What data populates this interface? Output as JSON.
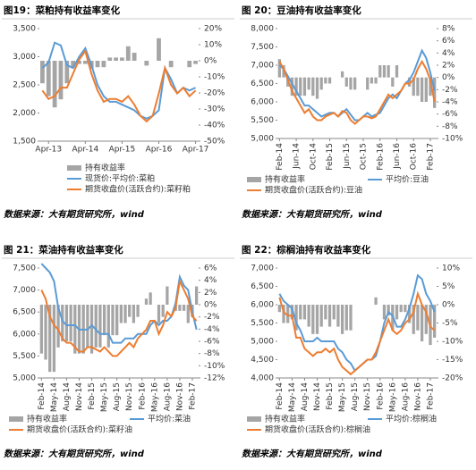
{
  "chart_data": [
    {
      "type": "combo",
      "title": "图19：菜粕持有收益率变化",
      "source": "数据来源：大有期货研究所，wind",
      "categories": [
        null,
        "Apr-13",
        null,
        null,
        null,
        null,
        null,
        "Apr-14",
        null,
        null,
        null,
        null,
        null,
        "Apr-15",
        null,
        null,
        null,
        null,
        null,
        "Apr-16",
        null,
        null,
        null,
        null,
        null,
        "Apr-17"
      ],
      "ylim": [
        1500,
        3500
      ],
      "yticks": [
        {
          "value": 1500,
          "label": "1,500"
        },
        {
          "value": 2000,
          "label": "2,000"
        },
        {
          "value": 2500,
          "label": "2,500"
        },
        {
          "value": 3000,
          "label": "3,000"
        },
        {
          "value": 3500,
          "label": "3,500"
        }
      ],
      "y2lim": [
        -50,
        20
      ],
      "y2ticks": [
        {
          "value": -50,
          "label": "-50%"
        },
        {
          "value": -40,
          "label": "-40%"
        },
        {
          "value": -30,
          "label": "-30%"
        },
        {
          "value": -20,
          "label": "-20%"
        },
        {
          "value": -10,
          "label": "-10%"
        },
        {
          "value": 0,
          "label": "0%"
        },
        {
          "value": 10,
          "label": "10%"
        },
        {
          "value": 20,
          "label": "20%"
        }
      ],
      "series": [
        {
          "name": "持有收益率",
          "type": "bar",
          "axis": "y2",
          "color": "#a5a5a5",
          "values": [
            -14,
            -22,
            -29,
            -24,
            -14,
            -4,
            -2,
            -2,
            -5,
            -4,
            -4,
            2,
            2,
            2,
            9,
            5,
            0,
            -3,
            0,
            14,
            0,
            -4,
            0,
            0,
            -4,
            -2
          ]
        },
        {
          "name": "现货价:平均价:菜粕",
          "type": "line",
          "color": "#5b9bd5",
          "values": [
            2800,
            2900,
            3250,
            3200,
            2850,
            2800,
            3000,
            3150,
            2850,
            2500,
            2300,
            2200,
            2200,
            2150,
            2100,
            2050,
            1950,
            1900,
            1950,
            2050,
            2800,
            2600,
            2350,
            2450,
            2400,
            2450
          ]
        },
        {
          "name": "期货收盘价(活跃合约):菜籽粕",
          "type": "line",
          "color": "#ed7d31",
          "values": [
            2400,
            2250,
            2300,
            2450,
            2450,
            2700,
            2950,
            3100,
            2700,
            2400,
            2200,
            2250,
            2250,
            2200,
            2300,
            2150,
            1950,
            1850,
            1950,
            2350,
            2800,
            2500,
            2350,
            2450,
            2300,
            2400
          ]
        }
      ]
    },
    {
      "type": "combo",
      "title": "图 20：豆油持有收益率变化",
      "source": "数据来源：大有期货研究所，wind",
      "categories": [
        "Feb-14",
        null,
        null,
        null,
        "Jun-14",
        null,
        null,
        null,
        "Oct-14",
        null,
        null,
        null,
        "Feb-15",
        null,
        null,
        null,
        "Jun-15",
        null,
        null,
        null,
        "Oct-15",
        null,
        null,
        null,
        "Feb-16",
        null,
        null,
        null,
        "Jun-16",
        null,
        null,
        null,
        "Oct-16",
        null,
        null,
        null,
        "Feb-17",
        null
      ],
      "ylim": [
        5000,
        8000
      ],
      "yticks": [
        {
          "value": 5000,
          "label": "5,000"
        },
        {
          "value": 5500,
          "label": "5,500"
        },
        {
          "value": 6000,
          "label": "6,000"
        },
        {
          "value": 6500,
          "label": "6,500"
        },
        {
          "value": 7000,
          "label": "7,000"
        },
        {
          "value": 7500,
          "label": "7,500"
        },
        {
          "value": 8000,
          "label": "8,000"
        }
      ],
      "y2lim": [
        -10,
        8
      ],
      "y2ticks": [
        {
          "value": -10,
          "label": "-10%"
        },
        {
          "value": -8,
          "label": "-8%"
        },
        {
          "value": -6,
          "label": "-6%"
        },
        {
          "value": -4,
          "label": "-4%"
        },
        {
          "value": -2,
          "label": "-2%"
        },
        {
          "value": 0,
          "label": "0%"
        },
        {
          "value": 2,
          "label": "2%"
        },
        {
          "value": 4,
          "label": "4%"
        },
        {
          "value": 6,
          "label": "6%"
        },
        {
          "value": 8,
          "label": "8%"
        }
      ],
      "series": [
        {
          "name": "持有收益率",
          "type": "bar",
          "axis": "y2",
          "color": "#a5a5a5",
          "values": [
            3,
            2,
            -1.5,
            -3,
            -3,
            -3,
            -3,
            -2,
            -3,
            -3.5,
            -2,
            -1,
            -1,
            0,
            0,
            1,
            -1.5,
            -2,
            -2,
            0,
            0,
            -2,
            -1,
            -1,
            2,
            2,
            2,
            -1.5,
            2,
            0,
            0,
            -1.5,
            -3,
            -3,
            -4,
            -4,
            -3,
            -5
          ]
        },
        {
          "name": "平均价:豆油",
          "type": "line",
          "color": "#5b9bd5",
          "values": [
            7000,
            6900,
            6700,
            6500,
            6300,
            6100,
            5900,
            5900,
            5800,
            5700,
            5600,
            5650,
            5700,
            5700,
            5600,
            5700,
            5800,
            5650,
            5500,
            5500,
            5600,
            5700,
            5600,
            5650,
            5700,
            5900,
            6100,
            6200,
            6100,
            6300,
            6500,
            6600,
            6800,
            7100,
            7400,
            7200,
            6800,
            6300
          ]
        },
        {
          "name": "期货收盘价(活跃合约):豆油",
          "type": "line",
          "color": "#ed7d31",
          "values": [
            7100,
            6900,
            6600,
            6300,
            6100,
            5900,
            5700,
            5800,
            5600,
            5500,
            5500,
            5600,
            5650,
            5700,
            5600,
            5750,
            5700,
            5500,
            5400,
            5500,
            5600,
            5600,
            5550,
            5600,
            5800,
            6000,
            6200,
            6100,
            6200,
            6300,
            6500,
            6500,
            6600,
            6900,
            7100,
            6900,
            6600,
            6000
          ]
        }
      ]
    },
    {
      "type": "combo",
      "title": "图 21：菜油持有收益率变化",
      "source": "数据来源：大有期货研究所，wind",
      "categories": [
        "Feb-14",
        null,
        null,
        "May-14",
        null,
        null,
        "Aug-14",
        null,
        null,
        "Nov-14",
        null,
        null,
        "Feb-15",
        null,
        null,
        "May-15",
        null,
        null,
        "Aug-15",
        null,
        null,
        "Nov-15",
        null,
        null,
        "Feb-16",
        null,
        null,
        "May-16",
        null,
        null,
        "Aug-16",
        null,
        null,
        "Nov-16",
        null,
        null,
        "Feb-17",
        null
      ],
      "ylim": [
        5000,
        7500
      ],
      "yticks": [
        {
          "value": 5000,
          "label": "5,000"
        },
        {
          "value": 5500,
          "label": "5,500"
        },
        {
          "value": 6000,
          "label": "6,000"
        },
        {
          "value": 6500,
          "label": "6,500"
        },
        {
          "value": 7000,
          "label": "7,000"
        },
        {
          "value": 7500,
          "label": "7,500"
        }
      ],
      "y2lim": [
        -12,
        6
      ],
      "y2ticks": [
        {
          "value": -12,
          "label": "-12%"
        },
        {
          "value": -10,
          "label": "-10%"
        },
        {
          "value": -8,
          "label": "-8%"
        },
        {
          "value": -6,
          "label": "-6%"
        },
        {
          "value": -4,
          "label": "-4%"
        },
        {
          "value": -2,
          "label": "-2%"
        },
        {
          "value": 0,
          "label": "0%"
        },
        {
          "value": 2,
          "label": "2%"
        },
        {
          "value": 4,
          "label": "4%"
        },
        {
          "value": 6,
          "label": "6%"
        }
      ],
      "series": [
        {
          "name": "持有收益率",
          "type": "bar",
          "axis": "y2",
          "color": "#a5a5a5",
          "values": [
            -8,
            -9,
            -11,
            -11,
            -7,
            -6,
            -6,
            -6,
            -8,
            -8,
            -8,
            -7,
            -8,
            -7,
            -7,
            -5,
            -7,
            -5,
            -5,
            -3,
            -3,
            -2,
            -3,
            -2,
            0,
            1,
            2,
            0,
            -3,
            -2,
            3,
            0,
            -1,
            -1,
            -1,
            -3,
            -2,
            3
          ]
        },
        {
          "name": "平均价:菜油",
          "type": "line",
          "color": "#5b9bd5",
          "values": [
            7600,
            7500,
            7400,
            7200,
            6600,
            6300,
            6200,
            6200,
            6200,
            6100,
            6100,
            6100,
            6200,
            6100,
            6000,
            6000,
            6000,
            5800,
            5800,
            5800,
            5900,
            5900,
            5900,
            6000,
            6000,
            6000,
            6200,
            6300,
            6200,
            6300,
            6300,
            6400,
            6700,
            7300,
            7100,
            7000,
            6500,
            6100
          ]
        },
        {
          "name": "期货收盘价(活跃合约):菜籽油",
          "type": "line",
          "color": "#ed7d31",
          "values": [
            7000,
            6800,
            6400,
            6200,
            6100,
            5900,
            5800,
            5800,
            5700,
            5600,
            5600,
            5700,
            5700,
            5650,
            5600,
            5700,
            5600,
            5500,
            5500,
            5600,
            5700,
            5800,
            5700,
            5900,
            6000,
            6100,
            6300,
            6300,
            6000,
            6200,
            6500,
            6400,
            6600,
            7200,
            7000,
            6800,
            6400,
            6300
          ]
        }
      ]
    },
    {
      "type": "combo",
      "title": "图 22：棕榈油持有收益率变化",
      "source": "数据来源：大有期货研究所，wind",
      "categories": [
        "Feb-14",
        null,
        null,
        "May-14",
        null,
        null,
        "Aug-14",
        null,
        null,
        "Nov-14",
        null,
        null,
        "Feb-15",
        null,
        null,
        "May-15",
        null,
        null,
        "Aug-15",
        null,
        null,
        "Nov-15",
        null,
        null,
        "Feb-16",
        null,
        null,
        "May-16",
        null,
        null,
        "Aug-16",
        null,
        null,
        "Nov-16",
        null,
        null,
        "Feb-17",
        null
      ],
      "ylim": [
        4000,
        7000
      ],
      "yticks": [
        {
          "value": 4000,
          "label": "4,000"
        },
        {
          "value": 4500,
          "label": "4,500"
        },
        {
          "value": 5000,
          "label": "5,000"
        },
        {
          "value": 5500,
          "label": "5,500"
        },
        {
          "value": 6000,
          "label": "6,000"
        },
        {
          "value": 6500,
          "label": "6,500"
        },
        {
          "value": 7000,
          "label": "7,000"
        }
      ],
      "y2lim": [
        -20,
        10
      ],
      "y2ticks": [
        {
          "value": -20,
          "label": "-20%"
        },
        {
          "value": -15,
          "label": "-15%"
        },
        {
          "value": -10,
          "label": "-10%"
        },
        {
          "value": -5,
          "label": "-5%"
        },
        {
          "value": 0,
          "label": "0%"
        },
        {
          "value": 5,
          "label": "5%"
        },
        {
          "value": 10,
          "label": "10%"
        }
      ],
      "series": [
        {
          "name": "持有收益率",
          "type": "bar",
          "axis": "y2",
          "color": "#a5a5a5",
          "values": [
            -2,
            -5,
            -5,
            -4,
            -7,
            -4,
            -4,
            -6,
            -8,
            -8,
            -6,
            -4,
            -6,
            -4,
            -6,
            -8,
            -7,
            -7,
            0,
            0,
            0,
            0,
            0,
            2,
            0,
            -4,
            -3,
            -7,
            -4,
            -2,
            -2,
            -5,
            -8,
            -7,
            -10,
            -8,
            -11,
            -9
          ]
        },
        {
          "name": "平均价:棕榈油",
          "type": "line",
          "color": "#5b9bd5",
          "values": [
            6300,
            6100,
            6000,
            5900,
            5500,
            5300,
            5000,
            5000,
            5000,
            5100,
            5000,
            5000,
            5000,
            5000,
            4800,
            4700,
            4500,
            4400,
            4200,
            4300,
            4400,
            4500,
            4500,
            4600,
            5000,
            5500,
            5800,
            5700,
            5400,
            5400,
            5600,
            5900,
            6300,
            6800,
            6700,
            6300,
            6100,
            5800
          ]
        },
        {
          "name": "期货收盘价(活跃合约):棕榈油",
          "type": "line",
          "color": "#ed7d31",
          "values": [
            6200,
            5800,
            5700,
            5700,
            5100,
            5100,
            4800,
            4700,
            4600,
            4700,
            4700,
            4800,
            4700,
            4800,
            4500,
            4300,
            4200,
            4100,
            4200,
            4300,
            4400,
            4500,
            4500,
            4700,
            5000,
            5300,
            5600,
            5300,
            5200,
            5300,
            5500,
            5600,
            5800,
            6300,
            6000,
            5800,
            5400,
            5300
          ]
        }
      ]
    }
  ]
}
